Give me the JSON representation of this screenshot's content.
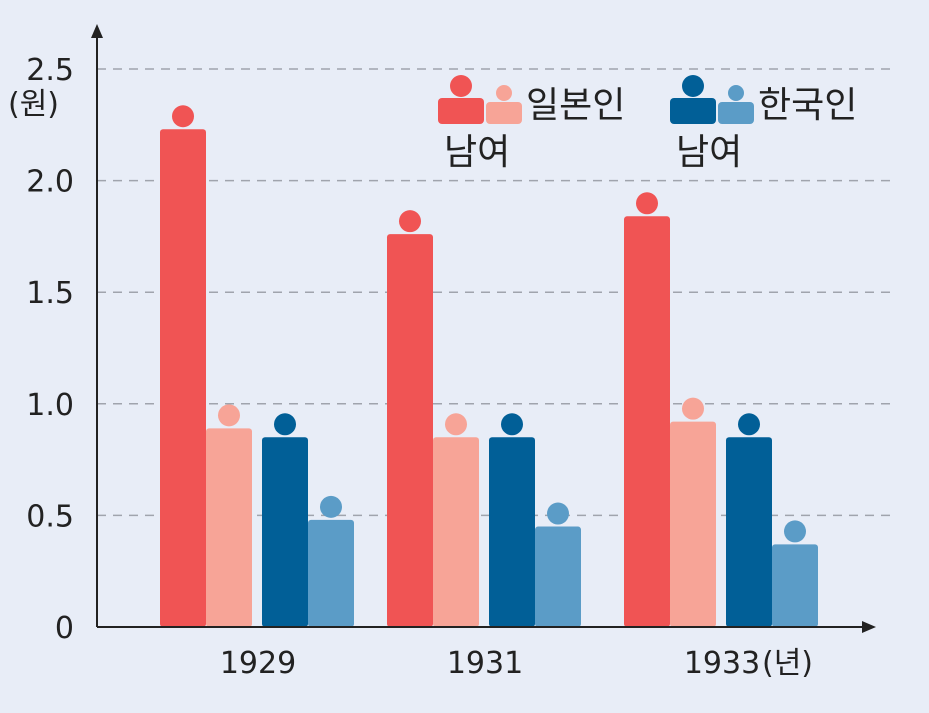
{
  "chart_data": {
    "type": "bar",
    "title": "",
    "ylabel": "(원)",
    "xunit": "(년)",
    "categories": [
      "1929",
      "1931",
      "1933"
    ],
    "ylim": [
      0,
      2.5
    ],
    "yticks": [
      "0",
      "0.5",
      "1.0",
      "1.5",
      "2.0",
      "2.5"
    ],
    "grid": true,
    "legend_position": "top-right",
    "legend_groups": [
      {
        "name": "일본인",
        "sublabel": "남여",
        "colors": [
          "#f05454",
          "#f7a497"
        ]
      },
      {
        "name": "한국인",
        "sublabel": "남여",
        "colors": [
          "#015f97",
          "#5b9cc7"
        ]
      }
    ],
    "series": [
      {
        "name": "일본인 남",
        "color": "#f05454",
        "values": [
          2.23,
          1.76,
          1.84
        ]
      },
      {
        "name": "일본인 여",
        "color": "#f7a497",
        "values": [
          0.89,
          0.85,
          0.92
        ]
      },
      {
        "name": "한국인 남",
        "color": "#015f97",
        "values": [
          0.85,
          0.85,
          0.85
        ]
      },
      {
        "name": "한국인 여",
        "color": "#5b9cc7",
        "values": [
          0.48,
          0.45,
          0.37
        ]
      }
    ]
  }
}
